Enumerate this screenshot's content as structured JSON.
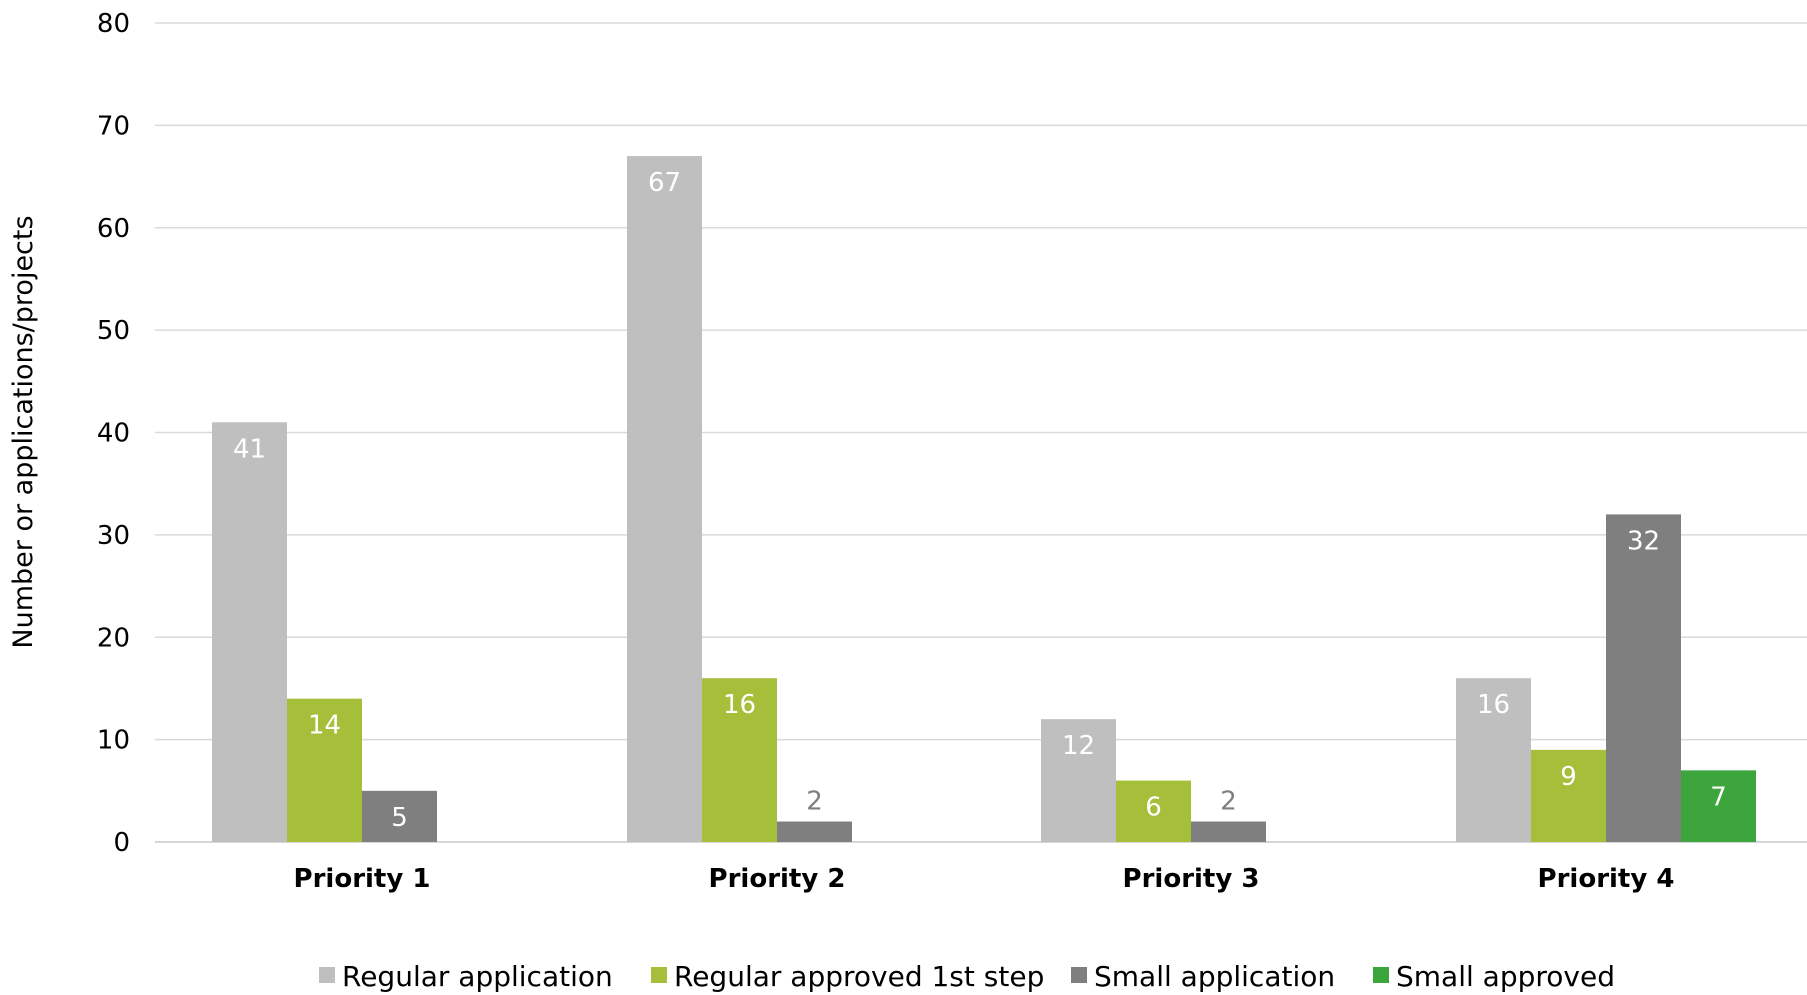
{
  "chart_data": {
    "type": "bar",
    "ylabel": "Number or applications/projects",
    "ylim": [
      0,
      80
    ],
    "yticks": [
      0,
      10,
      20,
      30,
      40,
      50,
      60,
      70,
      80
    ],
    "grid": true,
    "legend_position": "bottom",
    "categories": [
      "Priority 1",
      "Priority 2",
      "Priority 3",
      "Priority 4"
    ],
    "series": [
      {
        "name": "Regular application",
        "color": "#bfbfbf",
        "values": [
          41,
          67,
          12,
          16
        ]
      },
      {
        "name": "Regular approved 1st step",
        "color": "#a5bf3a",
        "values": [
          14,
          16,
          6,
          9
        ]
      },
      {
        "name": "Small application",
        "color": "#7f7f7f",
        "values": [
          5,
          2,
          2,
          32
        ]
      },
      {
        "name": "Small approved",
        "color": "#3ca63c",
        "values": [
          null,
          null,
          null,
          7
        ]
      }
    ]
  }
}
